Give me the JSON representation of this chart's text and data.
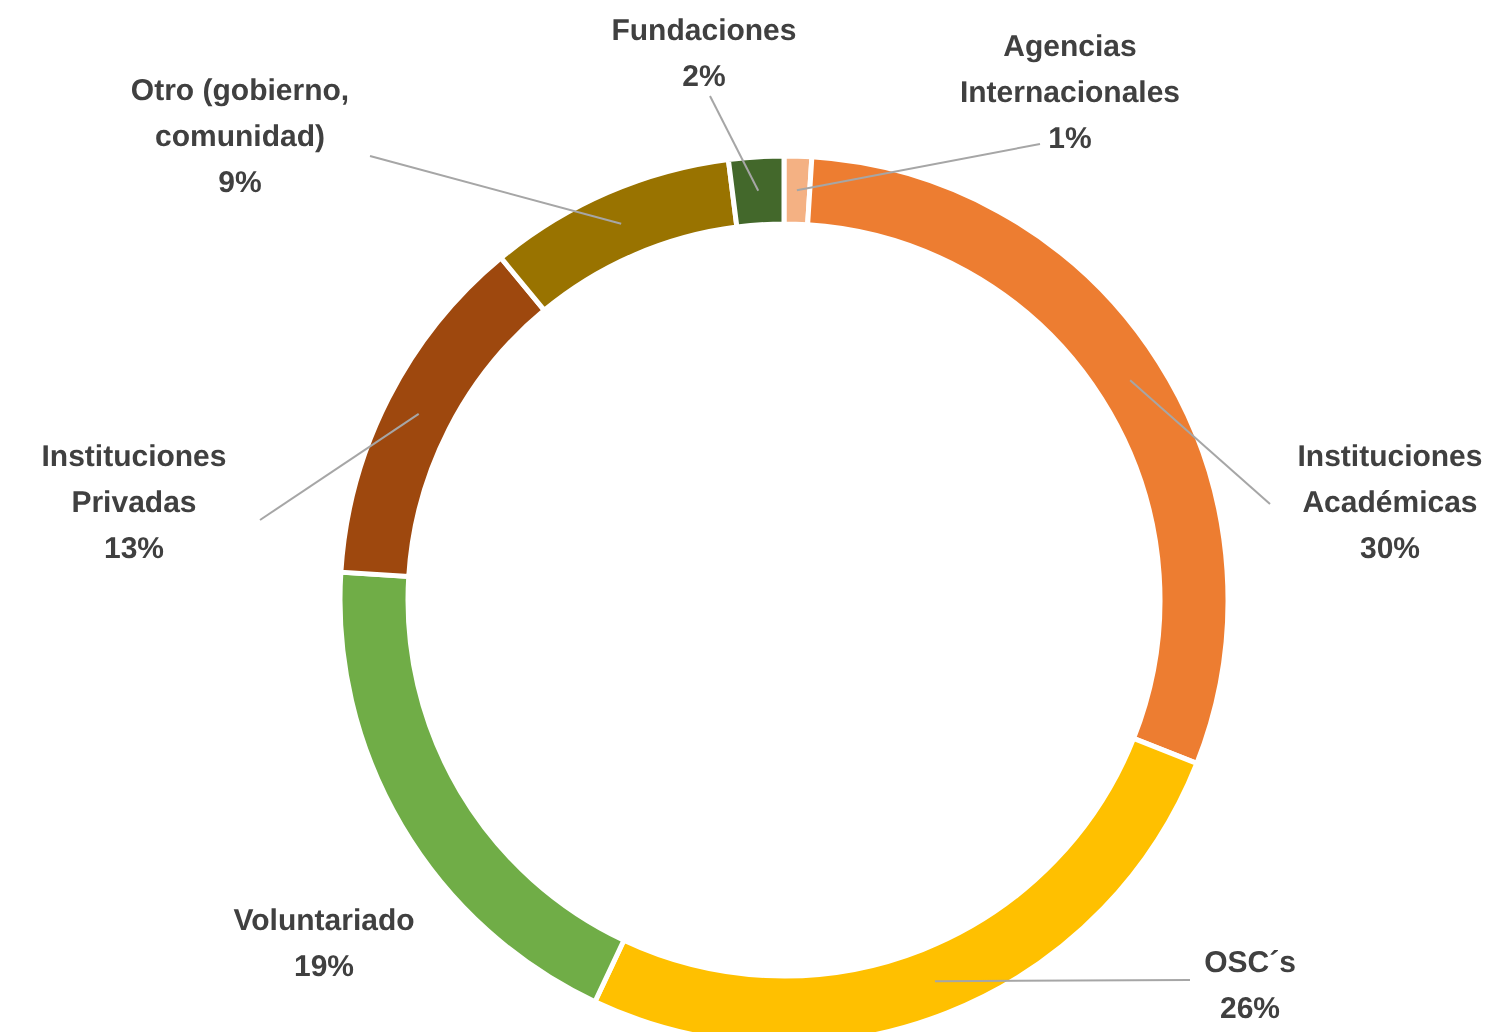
{
  "chart_data": {
    "type": "donut",
    "categories": [
      "Agencias Internacionales",
      "Instituciones Académicas",
      "OSC´s",
      "Voluntariado",
      "Instituciones Privadas",
      "Otro (gobierno, comunidad)",
      "Fundaciones"
    ],
    "values": [
      1,
      30,
      26,
      19,
      13,
      9,
      2
    ],
    "value_labels": [
      "1%",
      "30%",
      "26%",
      "19%",
      "13%",
      "9%",
      "2%"
    ],
    "colors": [
      "#f4b183",
      "#ed7d31",
      "#ffc000",
      "#70ad47",
      "#9e480e",
      "#997300",
      "#43682b"
    ]
  }
}
